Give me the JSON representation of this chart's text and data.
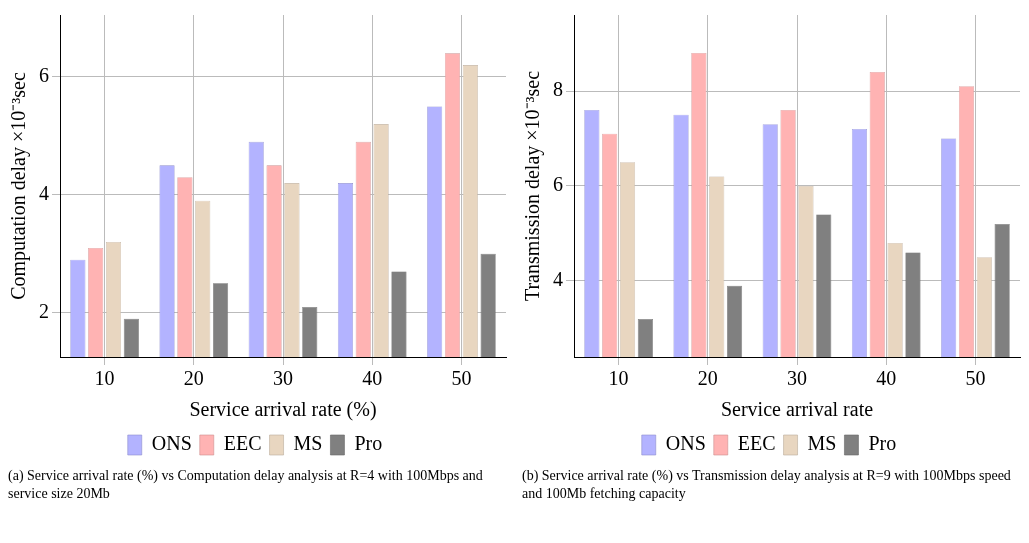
{
  "chart_data": [
    {
      "type": "bar",
      "xlabel": "Service arrival rate (%)",
      "ylabel": "Computation delay ×10⁻³sec",
      "categories": [
        "10",
        "20",
        "30",
        "40",
        "50"
      ],
      "series": [
        {
          "name": "ONS",
          "color": "#b3b3ff",
          "values": [
            2.9,
            4.5,
            4.9,
            4.2,
            5.5
          ]
        },
        {
          "name": "EEC",
          "color": "#ffb3b3",
          "values": [
            3.1,
            4.3,
            4.5,
            4.9,
            6.4
          ]
        },
        {
          "name": "MS",
          "color": "#e8d6c0",
          "values": [
            3.2,
            3.9,
            4.2,
            5.2,
            6.2
          ]
        },
        {
          "name": "Pro",
          "color": "#808080",
          "values": [
            1.9,
            2.5,
            2.1,
            2.7,
            3.0
          ]
        }
      ],
      "ylim": [
        1.25,
        7.05
      ],
      "yticks": [
        2,
        4,
        6
      ],
      "grid": true,
      "legend": "bottom",
      "annotations": [
        "(a) Service arrival rate (%) vs Computation delay analysis at R=4 with 100Mbps and service size 20Mb"
      ]
    },
    {
      "type": "bar",
      "xlabel": "Service arrival rate",
      "ylabel": "Transmission delay ×10⁻³sec",
      "categories": [
        "10",
        "20",
        "30",
        "40",
        "50"
      ],
      "series": [
        {
          "name": "ONS",
          "color": "#b3b3ff",
          "values": [
            7.6,
            7.5,
            7.3,
            7.2,
            7.0
          ]
        },
        {
          "name": "EEC",
          "color": "#ffb3b3",
          "values": [
            7.1,
            8.8,
            7.6,
            8.4,
            8.1
          ]
        },
        {
          "name": "MS",
          "color": "#e8d6c0",
          "values": [
            6.5,
            6.2,
            6.0,
            4.8,
            4.5
          ]
        },
        {
          "name": "Pro",
          "color": "#808080",
          "values": [
            3.2,
            3.9,
            5.4,
            4.6,
            5.2
          ]
        }
      ],
      "ylim": [
        2.4,
        9.6
      ],
      "yticks": [
        4,
        6,
        8
      ],
      "grid": true,
      "legend": "bottom",
      "annotations": [
        "(b) Service arrival rate (%) vs Transmission delay analysis at R=9 with 100Mbps speed and 100Mb fetching capacity"
      ]
    }
  ]
}
